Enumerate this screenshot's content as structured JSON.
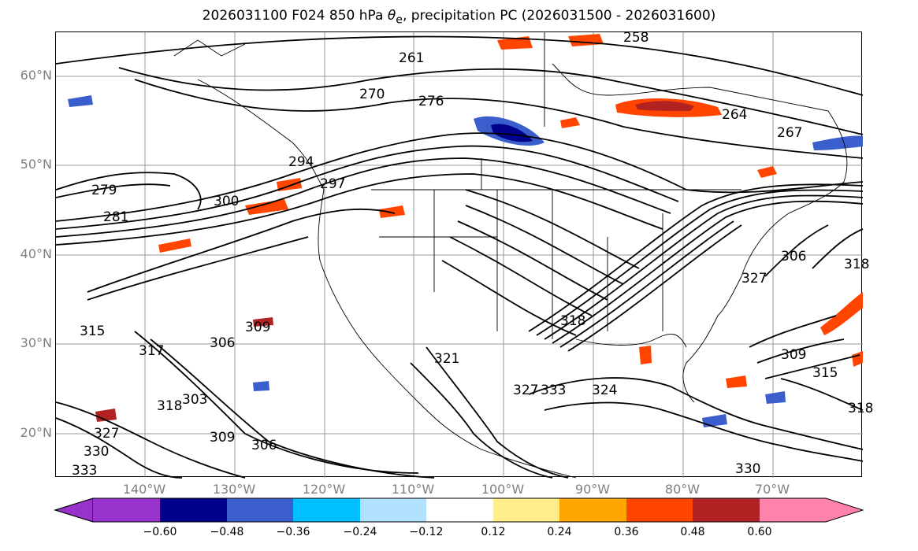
{
  "title": {
    "prefix": "2026031100 F024 850 hPa ",
    "theta": "θ",
    "subscript": "e",
    "suffix": ", precipitation PC (2026031500 - 2026031600)"
  },
  "lat_labels": [
    "60°N",
    "50°N",
    "40°N",
    "30°N",
    "20°N"
  ],
  "lon_labels": [
    "140°W",
    "130°W",
    "120°W",
    "110°W",
    "100°W",
    "90°W",
    "80°W",
    "70°W"
  ],
  "contour_labels": [
    "258",
    "261",
    "270",
    "276",
    "264",
    "267",
    "279",
    "294",
    "297",
    "300",
    "281",
    "306",
    "303",
    "309",
    "306",
    "315",
    "317",
    "318",
    "327",
    "330",
    "333",
    "321",
    "324",
    "327",
    "333",
    "309",
    "315",
    "318",
    "306",
    "318",
    "327",
    "330",
    "309",
    "318"
  ],
  "colorbar": {
    "ticks": [
      "−0.60",
      "−0.48",
      "−0.36",
      "−0.24",
      "−0.12",
      "0.12",
      "0.24",
      "0.36",
      "0.48",
      "0.60"
    ],
    "colors": [
      "#9932cc",
      "#00008b",
      "#3a5fcd",
      "#00bfff",
      "#b0e2ff",
      "#ffffff",
      "#ffec8b",
      "#ffa500",
      "#ff4500",
      "#b22222",
      "#ff82ab"
    ]
  }
}
